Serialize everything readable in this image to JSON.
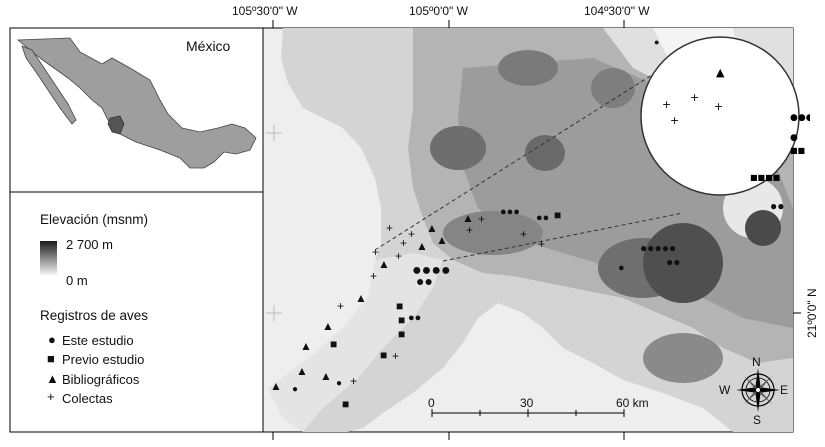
{
  "coords": {
    "top": [
      "105º30'0\" W",
      "105º0'0\" W",
      "104º30'0\" W"
    ],
    "right": "21º0'0\" N"
  },
  "inset": {
    "label": "México"
  },
  "legend": {
    "elevation_title": "Elevación (msnm)",
    "elevation_high": "2 700 m",
    "elevation_low": "0 m",
    "records_title": "Registros de aves",
    "items": [
      {
        "symbol": "●",
        "label": "Este estudio"
      },
      {
        "symbol": "■",
        "label": "Previo estudio"
      },
      {
        "symbol": "▲",
        "label": "Bibliográficos"
      },
      {
        "symbol": "+",
        "label": "Colectas"
      }
    ]
  },
  "scale": {
    "ticks": [
      "0",
      "30",
      "60 km"
    ]
  },
  "compass": {
    "n": "N",
    "s": "S",
    "e": "E",
    "w": "W"
  },
  "colors": {
    "ocean": "#e9e9e9",
    "land_low": "#d6d6d6",
    "land_mid": "#a8a8a8",
    "land_high": "#5a5a5a",
    "symbol": "#000000"
  }
}
